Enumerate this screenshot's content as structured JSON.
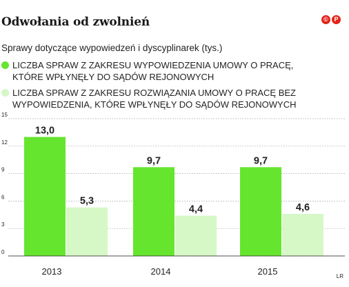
{
  "title": "Odwołania od zwolnień",
  "logo": [
    "©",
    "P"
  ],
  "subtitle": "Sprawy dotyczące wypowiedzeń i dyscyplinarek (tys.)",
  "credit": "LR",
  "chart_data": {
    "type": "bar",
    "categories": [
      "2013",
      "2014",
      "2015"
    ],
    "series": [
      {
        "name": "LICZBA SPRAW Z ZAKRESU WYPOWIEDZENIA UMOWY O PRACĘ,\nKTÓRE WPŁYNĘŁY DO SĄDÓW REJONOWYCH",
        "values": [
          13.0,
          9.7,
          9.7
        ],
        "labels": [
          "13,0",
          "9,7",
          "9,7"
        ],
        "color": "#66e52e"
      },
      {
        "name": "LICZBA SPRAW Z ZAKRESU ROZWIĄZANIA UMOWY O PRACĘ BEZ\nWYPOWIEDZENIA, KTÓRE WPŁYNĘŁY DO SĄDÓW REJONOWYCH",
        "values": [
          5.3,
          4.4,
          4.6
        ],
        "labels": [
          "5,3",
          "4,4",
          "4,6"
        ],
        "color": "#d6f7c6"
      }
    ],
    "yticks": [
      "0",
      "3",
      "6",
      "9",
      "12",
      "15"
    ],
    "ylim": [
      0,
      15
    ],
    "grid": true,
    "legend": "top"
  }
}
